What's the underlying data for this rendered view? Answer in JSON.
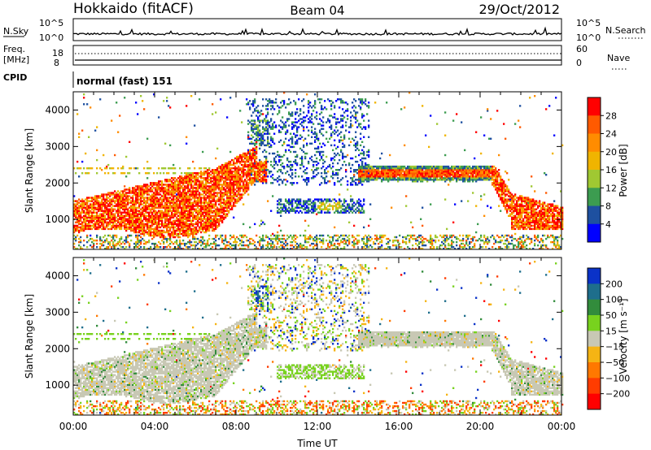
{
  "header": {
    "station": "Hokkaido (fitACF)",
    "beam": "Beam 04",
    "date": "29/Oct/2012"
  },
  "noise_panel": {
    "left_label": "N.Sky",
    "right_label": "N.Search",
    "tick_top": "10^5",
    "tick_bottom": "10^0"
  },
  "freq_panel": {
    "left_label_1": "Freq.",
    "left_label_2": "[MHz]",
    "right_label": "Nave",
    "left_tick_top": "18",
    "left_tick_bottom": "8",
    "right_tick_top": "60",
    "right_tick_bottom": "0"
  },
  "cpid_panel": {
    "label": "CPID",
    "mode": "normal (fast) 151"
  },
  "chart_data": [
    {
      "type": "heatmap",
      "name": "Power",
      "ylabel": "Slant Range [km]",
      "xlabel": "",
      "xlim": [
        "00:00",
        "24:00"
      ],
      "ylim": [
        180,
        4500
      ],
      "yticks": [
        "1000",
        "2000",
        "3000",
        "4000"
      ],
      "colorbar": {
        "label": "Power [dB]",
        "ticks": [
          "4",
          "8",
          "12",
          "16",
          "20",
          "24",
          "28"
        ],
        "colors": [
          "#0000ff",
          "#1e50a0",
          "#3c9c50",
          "#a0c832",
          "#f0b400",
          "#ff8c00",
          "#ff5a00",
          "#ff0000"
        ]
      }
    },
    {
      "type": "heatmap",
      "name": "Velocity",
      "ylabel": "Slant Range [km]",
      "xlabel": "Time UT",
      "xlim": [
        "00:00",
        "24:00"
      ],
      "ylim": [
        180,
        4500
      ],
      "xticks": [
        "00:00",
        "04:00",
        "08:00",
        "12:00",
        "16:00",
        "20:00",
        "00:00"
      ],
      "yticks": [
        "1000",
        "2000",
        "3000",
        "4000"
      ],
      "colorbar": {
        "label": "Velocity [m s⁻¹]",
        "ticks": [
          "200",
          "100",
          "50",
          "15",
          "−15",
          "−50",
          "−100",
          "−200"
        ],
        "colors": [
          "#0a32c8",
          "#1e6e8c",
          "#328c3c",
          "#78d21e",
          "#c8c8b4",
          "#f5b414",
          "#ff7800",
          "#ff3c00",
          "#ff0000"
        ]
      }
    }
  ]
}
